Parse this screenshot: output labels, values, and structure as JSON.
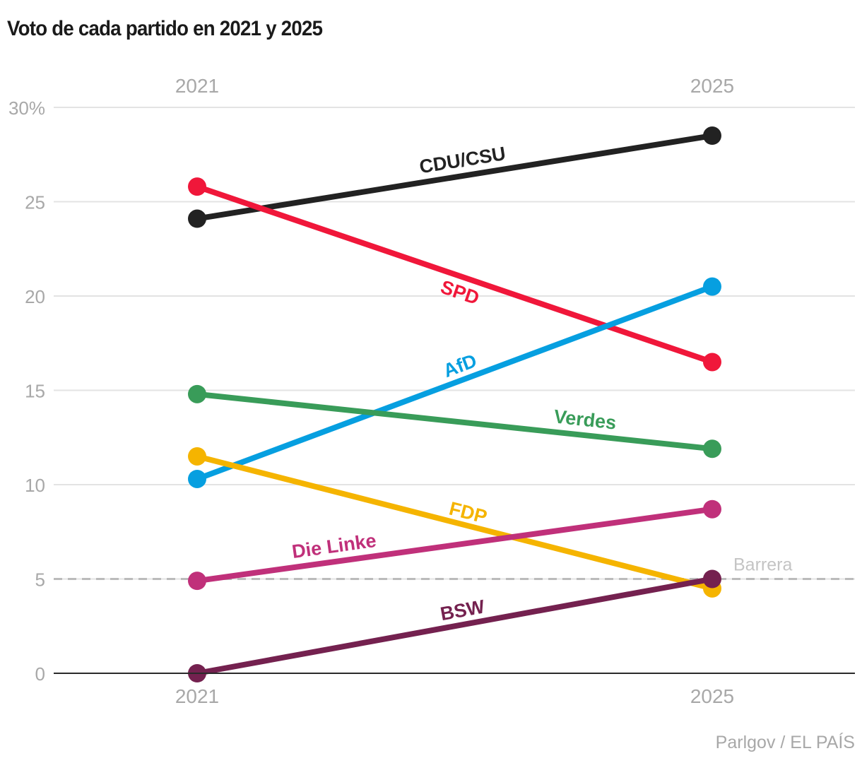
{
  "chart_data": {
    "type": "line",
    "title": "Voto de cada partido en 2021 y 2025",
    "x": [
      "2021",
      "2025"
    ],
    "xlabel": "",
    "ylabel": "",
    "ylim": [
      0,
      30
    ],
    "yticks": [
      0,
      5,
      10,
      15,
      20,
      25,
      30
    ],
    "ytick_labels": [
      "0",
      "5",
      "10",
      "15",
      "20",
      "25",
      "30%"
    ],
    "grid": true,
    "legend": "inline-labels",
    "threshold": {
      "value": 5,
      "label": "Barrera"
    },
    "series": [
      {
        "name": "CDU/CSU",
        "values": [
          24.1,
          28.5
        ],
        "color": "#222222"
      },
      {
        "name": "SPD",
        "values": [
          25.8,
          16.5
        ],
        "color": "#f0173a"
      },
      {
        "name": "AfD",
        "values": [
          10.3,
          20.5
        ],
        "color": "#069fe0"
      },
      {
        "name": "Verdes",
        "values": [
          14.8,
          11.9
        ],
        "color": "#399c59"
      },
      {
        "name": "FDP",
        "values": [
          11.5,
          4.5
        ],
        "color": "#f5b400"
      },
      {
        "name": "Die Linke",
        "values": [
          4.9,
          8.7
        ],
        "color": "#c0307a"
      },
      {
        "name": "BSW",
        "values": [
          0,
          5.0
        ],
        "color": "#74214f"
      }
    ]
  },
  "source": "Parlgov / EL PAÍS"
}
